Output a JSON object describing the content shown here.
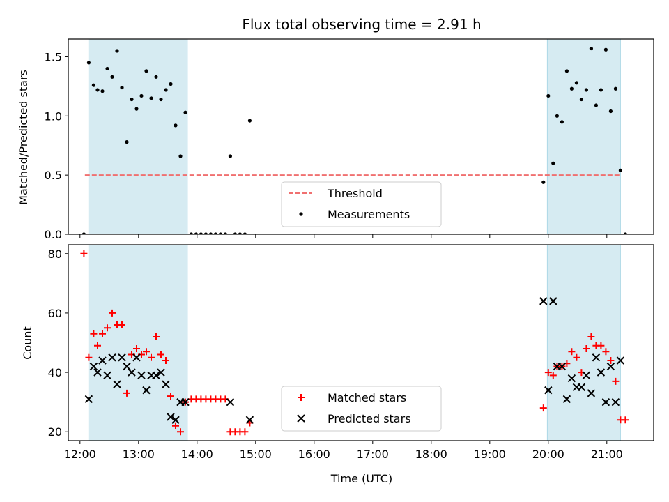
{
  "chart_data": [
    {
      "type": "scatter",
      "title": "Flux total observing time = 2.91 h",
      "ylabel": "Matched/Predicted stars",
      "xlabel": "",
      "xlim": [
        "11:48",
        "21:48"
      ],
      "ylim": [
        0,
        1.65
      ],
      "yticks": [
        "0.0",
        "0.5",
        "1.0",
        "1.5"
      ],
      "legend": {
        "placement": "lower-center",
        "entries": [
          "Threshold",
          "Measurements"
        ]
      },
      "threshold": {
        "name": "Threshold",
        "value": 0.5,
        "color": "#f07070",
        "x_start": "12:05",
        "x_end": "21:15"
      },
      "shaded_regions": [
        {
          "start": "12:09",
          "end": "13:50"
        },
        {
          "start": "19:59",
          "end": "21:14"
        }
      ],
      "series": [
        {
          "name": "Measurements",
          "color": "#000000",
          "points": [
            [
              "12:04",
              0.0
            ],
            [
              "12:09",
              1.45
            ],
            [
              "12:14",
              1.26
            ],
            [
              "12:18",
              1.22
            ],
            [
              "12:23",
              1.21
            ],
            [
              "12:28",
              1.4
            ],
            [
              "12:33",
              1.33
            ],
            [
              "12:38",
              1.55
            ],
            [
              "12:43",
              1.24
            ],
            [
              "12:48",
              0.78
            ],
            [
              "12:53",
              1.14
            ],
            [
              "12:58",
              1.06
            ],
            [
              "13:03",
              1.17
            ],
            [
              "13:08",
              1.38
            ],
            [
              "13:13",
              1.15
            ],
            [
              "13:18",
              1.33
            ],
            [
              "13:23",
              1.14
            ],
            [
              "13:28",
              1.22
            ],
            [
              "13:33",
              1.27
            ],
            [
              "13:38",
              0.92
            ],
            [
              "13:43",
              0.66
            ],
            [
              "13:48",
              1.03
            ],
            [
              "13:54",
              0.0
            ],
            [
              "13:59",
              0.0
            ],
            [
              "14:04",
              0.0
            ],
            [
              "14:09",
              0.0
            ],
            [
              "14:14",
              0.0
            ],
            [
              "14:19",
              0.0
            ],
            [
              "14:24",
              0.0
            ],
            [
              "14:29",
              0.0
            ],
            [
              "14:34",
              0.66
            ],
            [
              "14:39",
              0.0
            ],
            [
              "14:44",
              0.0
            ],
            [
              "14:49",
              0.0
            ],
            [
              "14:54",
              0.96
            ],
            [
              "19:55",
              0.44
            ],
            [
              "20:00",
              1.17
            ],
            [
              "20:05",
              0.6
            ],
            [
              "20:09",
              1.0
            ],
            [
              "20:14",
              0.95
            ],
            [
              "20:19",
              1.38
            ],
            [
              "20:24",
              1.23
            ],
            [
              "20:29",
              1.28
            ],
            [
              "20:34",
              1.14
            ],
            [
              "20:39",
              1.22
            ],
            [
              "20:44",
              1.57
            ],
            [
              "20:49",
              1.09
            ],
            [
              "20:54",
              1.22
            ],
            [
              "20:59",
              1.56
            ],
            [
              "21:04",
              1.04
            ],
            [
              "21:09",
              1.23
            ],
            [
              "21:14",
              0.54
            ],
            [
              "21:19",
              0.0
            ]
          ]
        }
      ]
    },
    {
      "type": "scatter",
      "title": "",
      "ylabel": "Count",
      "xlabel": "Time (UTC)",
      "xlim": [
        "11:48",
        "21:48"
      ],
      "ylim": [
        17,
        83
      ],
      "yticks": [
        "20",
        "40",
        "60",
        "80"
      ],
      "xticks": [
        "12:00",
        "13:00",
        "14:00",
        "15:00",
        "16:00",
        "17:00",
        "18:00",
        "19:00",
        "20:00",
        "21:00"
      ],
      "legend": {
        "placement": "lower-center",
        "entries": [
          "Matched stars",
          "Predicted stars"
        ]
      },
      "shaded_regions": [
        {
          "start": "12:09",
          "end": "13:50"
        },
        {
          "start": "19:59",
          "end": "21:14"
        }
      ],
      "series": [
        {
          "name": "Matched stars",
          "marker": "plus",
          "color": "#ff0000",
          "points": [
            [
              "12:04",
              80
            ],
            [
              "12:09",
              45
            ],
            [
              "12:14",
              53
            ],
            [
              "12:18",
              49
            ],
            [
              "12:23",
              53
            ],
            [
              "12:28",
              55
            ],
            [
              "12:33",
              60
            ],
            [
              "12:38",
              56
            ],
            [
              "12:43",
              56
            ],
            [
              "12:48",
              33
            ],
            [
              "12:53",
              46
            ],
            [
              "12:58",
              48
            ],
            [
              "13:03",
              46
            ],
            [
              "13:08",
              47
            ],
            [
              "13:13",
              45
            ],
            [
              "13:18",
              52
            ],
            [
              "13:23",
              46
            ],
            [
              "13:28",
              44
            ],
            [
              "13:33",
              32
            ],
            [
              "13:38",
              22
            ],
            [
              "13:43",
              20
            ],
            [
              "13:48",
              30
            ],
            [
              "13:54",
              31
            ],
            [
              "13:59",
              31
            ],
            [
              "14:04",
              31
            ],
            [
              "14:09",
              31
            ],
            [
              "14:14",
              31
            ],
            [
              "14:19",
              31
            ],
            [
              "14:24",
              31
            ],
            [
              "14:29",
              31
            ],
            [
              "14:34",
              20
            ],
            [
              "14:39",
              20
            ],
            [
              "14:44",
              20
            ],
            [
              "14:49",
              20
            ],
            [
              "14:54",
              23
            ],
            [
              "19:55",
              28
            ],
            [
              "20:00",
              40
            ],
            [
              "20:05",
              39
            ],
            [
              "20:09",
              42
            ],
            [
              "20:14",
              42
            ],
            [
              "20:19",
              43
            ],
            [
              "20:24",
              47
            ],
            [
              "20:29",
              45
            ],
            [
              "20:34",
              40
            ],
            [
              "20:39",
              48
            ],
            [
              "20:44",
              52
            ],
            [
              "20:49",
              49
            ],
            [
              "20:54",
              49
            ],
            [
              "20:59",
              47
            ],
            [
              "21:04",
              44
            ],
            [
              "21:09",
              37
            ],
            [
              "21:14",
              24
            ],
            [
              "21:19",
              24
            ]
          ]
        },
        {
          "name": "Predicted stars",
          "marker": "x",
          "color": "#000000",
          "points": [
            [
              "12:09",
              31
            ],
            [
              "12:14",
              42
            ],
            [
              "12:18",
              40
            ],
            [
              "12:23",
              44
            ],
            [
              "12:28",
              39
            ],
            [
              "12:33",
              45
            ],
            [
              "12:38",
              36
            ],
            [
              "12:43",
              45
            ],
            [
              "12:48",
              42
            ],
            [
              "12:53",
              40
            ],
            [
              "12:58",
              45
            ],
            [
              "13:03",
              39
            ],
            [
              "13:08",
              34
            ],
            [
              "13:13",
              39
            ],
            [
              "13:18",
              39
            ],
            [
              "13:23",
              40
            ],
            [
              "13:28",
              36
            ],
            [
              "13:33",
              25
            ],
            [
              "13:38",
              24
            ],
            [
              "13:43",
              30
            ],
            [
              "13:48",
              30
            ],
            [
              "14:34",
              30
            ],
            [
              "14:54",
              24
            ],
            [
              "19:55",
              64
            ],
            [
              "20:00",
              34
            ],
            [
              "20:05",
              64
            ],
            [
              "20:09",
              42
            ],
            [
              "20:14",
              42
            ],
            [
              "20:19",
              31
            ],
            [
              "20:24",
              38
            ],
            [
              "20:29",
              35
            ],
            [
              "20:34",
              35
            ],
            [
              "20:39",
              39
            ],
            [
              "20:44",
              33
            ],
            [
              "20:49",
              45
            ],
            [
              "20:54",
              40
            ],
            [
              "20:59",
              30
            ],
            [
              "21:04",
              42
            ],
            [
              "21:09",
              30
            ],
            [
              "21:14",
              44
            ]
          ]
        }
      ]
    }
  ]
}
